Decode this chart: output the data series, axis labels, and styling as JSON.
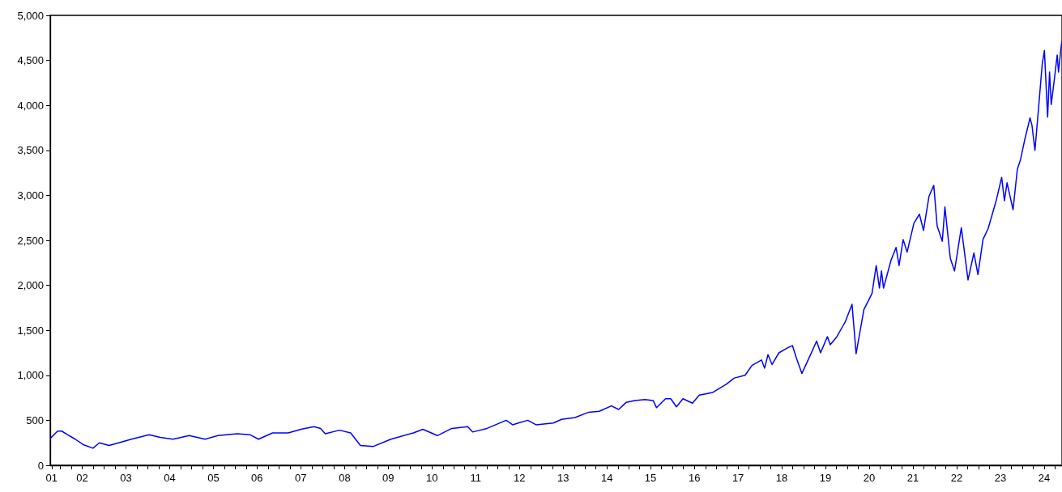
{
  "chart_data": {
    "type": "line",
    "color": "#0000ff",
    "x": [
      "2001-10-08",
      "2001-12-08",
      "2002-01-11",
      "2002-02-28",
      "2002-05-04",
      "2002-07-10",
      "2002-09-29",
      "2002-11-21",
      "2003-02-11",
      "2003-05-01",
      "2003-08-16",
      "2004-01-11",
      "2004-04-13",
      "2004-07-29",
      "2004-12-11",
      "2005-04-22",
      "2005-08-08",
      "2006-01-16",
      "2006-05-02",
      "2006-07-13",
      "2006-11-07",
      "2007-03-18",
      "2007-07-03",
      "2007-10-20",
      "2007-12-13",
      "2008-01-22",
      "2008-05-19",
      "2008-08-21",
      "2008-11-10",
      "2009-02-27",
      "2009-07-23",
      "2010-01-27",
      "2010-04-16",
      "2010-08-15",
      "2010-12-14",
      "2011-04-26",
      "2011-06-05",
      "2011-10-04",
      "2012-03-12",
      "2012-05-05",
      "2012-06-21",
      "2012-09-08",
      "2012-11-16",
      "2013-04-10",
      "2013-06-17",
      "2013-10-08",
      "2014-01-30",
      "2014-04-28",
      "2014-08-08",
      "2014-10-08",
      "2014-12-10",
      "2015-02-17",
      "2015-05-16",
      "2015-07-23",
      "2015-08-20",
      "2015-11-03",
      "2015-12-17",
      "2016-02-02",
      "2016-03-28",
      "2016-06-15",
      "2016-08-11",
      "2016-12-02",
      "2017-03-24",
      "2017-05-31",
      "2017-08-29",
      "2017-10-25",
      "2018-01-13",
      "2018-02-08",
      "2018-03-08",
      "2018-04-11",
      "2018-06-07",
      "2018-08-25",
      "2018-09-28",
      "2018-11-01",
      "2018-12-16",
      "2019-02-23",
      "2019-04-18",
      "2019-05-21",
      "2019-07-17",
      "2019-08-10",
      "2019-10-05",
      "2019-11-20",
      "2019-12-12",
      "2020-02-08",
      "2020-03-13",
      "2020-05-17",
      "2020-07-24",
      "2020-08-28",
      "2020-09-24",
      "2020-10-11",
      "2020-10-28",
      "2020-12-30",
      "2021-02-10",
      "2021-03-07",
      "2021-04-10",
      "2021-05-13",
      "2021-07-09",
      "2021-08-24",
      "2021-09-27",
      "2021-11-12",
      "2021-12-22",
      "2022-01-19",
      "2022-03-03",
      "2022-03-25",
      "2022-05-09",
      "2022-06-13",
      "2022-08-09",
      "2022-10-04",
      "2022-11-22",
      "2022-12-26",
      "2023-02-06",
      "2023-03-21",
      "2023-05-27",
      "2023-07-12",
      "2023-08-04",
      "2023-08-26",
      "2023-10-15",
      "2023-11-20",
      "2023-12-17",
      "2024-01-21",
      "2024-03-05",
      "2024-03-21",
      "2024-04-15",
      "2024-05-12",
      "2024-06-15",
      "2024-07-03",
      "2024-07-30",
      "2024-08-15",
      "2024-08-29",
      "2024-09-26",
      "2024-10-18",
      "2024-10-29",
      "2024-11-17",
      "2024-11-26"
    ],
    "values": [
      300,
      380,
      380,
      340,
      290,
      230,
      190,
      250,
      220,
      250,
      290,
      340,
      310,
      290,
      330,
      290,
      330,
      350,
      340,
      290,
      360,
      360,
      400,
      430,
      410,
      350,
      390,
      360,
      220,
      210,
      290,
      360,
      400,
      330,
      410,
      430,
      370,
      410,
      500,
      450,
      470,
      500,
      450,
      470,
      510,
      530,
      590,
      600,
      660,
      620,
      700,
      720,
      730,
      720,
      640,
      740,
      740,
      650,
      740,
      690,
      780,
      810,
      900,
      970,
      1000,
      1110,
      1170,
      1080,
      1230,
      1120,
      1250,
      1310,
      1330,
      1190,
      1020,
      1220,
      1380,
      1250,
      1430,
      1340,
      1430,
      1540,
      1590,
      1790,
      1240,
      1730,
      1910,
      2220,
      1970,
      2160,
      1970,
      2280,
      2420,
      2220,
      2510,
      2370,
      2690,
      2790,
      2610,
      2990,
      3110,
      2660,
      2490,
      2870,
      2300,
      2160,
      2640,
      2060,
      2360,
      2120,
      2510,
      2630,
      2940,
      3200,
      2940,
      3140,
      2840,
      3290,
      3400,
      3620,
      3860,
      3780,
      3500,
      3920,
      4460,
      4610,
      3870,
      4370,
      4010,
      4310,
      4560,
      4370,
      4620,
      4710
    ],
    "xlim": [
      "2001-10-07",
      "2024-11-27"
    ],
    "xticks": [
      {
        "value": "2001-10-19",
        "label": "01"
      },
      {
        "value": "2002-01-01",
        "label": null
      },
      {
        "value": "2002-04-01",
        "label": null
      },
      {
        "value": "2002-07-01",
        "label": "02"
      },
      {
        "value": "2002-10-01",
        "label": null
      },
      {
        "value": "2003-01-01",
        "label": null
      },
      {
        "value": "2003-04-01",
        "label": null
      },
      {
        "value": "2003-07-01",
        "label": "03"
      },
      {
        "value": "2003-10-01",
        "label": null
      },
      {
        "value": "2004-01-01",
        "label": null
      },
      {
        "value": "2004-04-01",
        "label": null
      },
      {
        "value": "2004-07-01",
        "label": "04"
      },
      {
        "value": "2004-10-01",
        "label": null
      },
      {
        "value": "2005-01-01",
        "label": null
      },
      {
        "value": "2005-04-01",
        "label": null
      },
      {
        "value": "2005-07-01",
        "label": "05"
      },
      {
        "value": "2005-10-01",
        "label": null
      },
      {
        "value": "2006-01-01",
        "label": null
      },
      {
        "value": "2006-04-01",
        "label": null
      },
      {
        "value": "2006-07-01",
        "label": "06"
      },
      {
        "value": "2006-10-01",
        "label": null
      },
      {
        "value": "2007-01-01",
        "label": null
      },
      {
        "value": "2007-04-01",
        "label": null
      },
      {
        "value": "2007-07-01",
        "label": "07"
      },
      {
        "value": "2007-10-01",
        "label": null
      },
      {
        "value": "2008-01-01",
        "label": null
      },
      {
        "value": "2008-04-01",
        "label": null
      },
      {
        "value": "2008-07-01",
        "label": "08"
      },
      {
        "value": "2008-10-01",
        "label": null
      },
      {
        "value": "2009-01-01",
        "label": null
      },
      {
        "value": "2009-04-01",
        "label": null
      },
      {
        "value": "2009-07-01",
        "label": "09"
      },
      {
        "value": "2009-10-01",
        "label": null
      },
      {
        "value": "2010-01-01",
        "label": null
      },
      {
        "value": "2010-04-01",
        "label": null
      },
      {
        "value": "2010-07-01",
        "label": "10"
      },
      {
        "value": "2010-10-01",
        "label": null
      },
      {
        "value": "2011-01-01",
        "label": null
      },
      {
        "value": "2011-04-01",
        "label": null
      },
      {
        "value": "2011-07-01",
        "label": "11"
      },
      {
        "value": "2011-10-01",
        "label": null
      },
      {
        "value": "2012-01-01",
        "label": null
      },
      {
        "value": "2012-04-01",
        "label": null
      },
      {
        "value": "2012-07-01",
        "label": "12"
      },
      {
        "value": "2012-10-01",
        "label": null
      },
      {
        "value": "2013-01-01",
        "label": null
      },
      {
        "value": "2013-04-01",
        "label": null
      },
      {
        "value": "2013-07-01",
        "label": "13"
      },
      {
        "value": "2013-10-01",
        "label": null
      },
      {
        "value": "2014-01-01",
        "label": null
      },
      {
        "value": "2014-04-01",
        "label": null
      },
      {
        "value": "2014-07-01",
        "label": "14"
      },
      {
        "value": "2014-10-01",
        "label": null
      },
      {
        "value": "2015-01-01",
        "label": null
      },
      {
        "value": "2015-04-01",
        "label": null
      },
      {
        "value": "2015-07-01",
        "label": "15"
      },
      {
        "value": "2015-10-01",
        "label": null
      },
      {
        "value": "2016-01-01",
        "label": null
      },
      {
        "value": "2016-04-01",
        "label": null
      },
      {
        "value": "2016-07-01",
        "label": "16"
      },
      {
        "value": "2016-10-01",
        "label": null
      },
      {
        "value": "2017-01-01",
        "label": null
      },
      {
        "value": "2017-04-01",
        "label": null
      },
      {
        "value": "2017-07-01",
        "label": "17"
      },
      {
        "value": "2017-10-01",
        "label": null
      },
      {
        "value": "2018-01-01",
        "label": null
      },
      {
        "value": "2018-04-01",
        "label": null
      },
      {
        "value": "2018-07-01",
        "label": "18"
      },
      {
        "value": "2018-10-01",
        "label": null
      },
      {
        "value": "2019-01-01",
        "label": null
      },
      {
        "value": "2019-04-01",
        "label": null
      },
      {
        "value": "2019-07-01",
        "label": "19"
      },
      {
        "value": "2019-10-01",
        "label": null
      },
      {
        "value": "2020-01-01",
        "label": null
      },
      {
        "value": "2020-04-01",
        "label": null
      },
      {
        "value": "2020-07-01",
        "label": "20"
      },
      {
        "value": "2020-10-01",
        "label": null
      },
      {
        "value": "2021-01-01",
        "label": null
      },
      {
        "value": "2021-04-01",
        "label": null
      },
      {
        "value": "2021-07-01",
        "label": "21"
      },
      {
        "value": "2021-10-01",
        "label": null
      },
      {
        "value": "2022-01-01",
        "label": null
      },
      {
        "value": "2022-04-01",
        "label": null
      },
      {
        "value": "2022-07-01",
        "label": "22"
      },
      {
        "value": "2022-10-01",
        "label": null
      },
      {
        "value": "2023-01-01",
        "label": null
      },
      {
        "value": "2023-04-01",
        "label": null
      },
      {
        "value": "2023-07-01",
        "label": "23"
      },
      {
        "value": "2023-10-01",
        "label": null
      },
      {
        "value": "2024-01-01",
        "label": null
      },
      {
        "value": "2024-04-01",
        "label": null
      },
      {
        "value": "2024-07-01",
        "label": "24"
      },
      {
        "value": "2024-10-01",
        "label": null
      }
    ],
    "ylim": [
      0,
      5000
    ],
    "yticks": [
      0,
      500,
      {
        "value": 1000,
        "label": "1,000"
      },
      {
        "value": 1500,
        "label": "1,500"
      },
      {
        "value": 2000,
        "label": "2,000"
      },
      {
        "value": 2500,
        "label": "2,500"
      },
      {
        "value": 3000,
        "label": "3,000"
      },
      {
        "value": 3500,
        "label": "3,500"
      },
      {
        "value": 4000,
        "label": "4,000"
      },
      {
        "value": 4500,
        "label": "4,500"
      },
      {
        "value": 5000,
        "label": "5,000"
      }
    ]
  }
}
